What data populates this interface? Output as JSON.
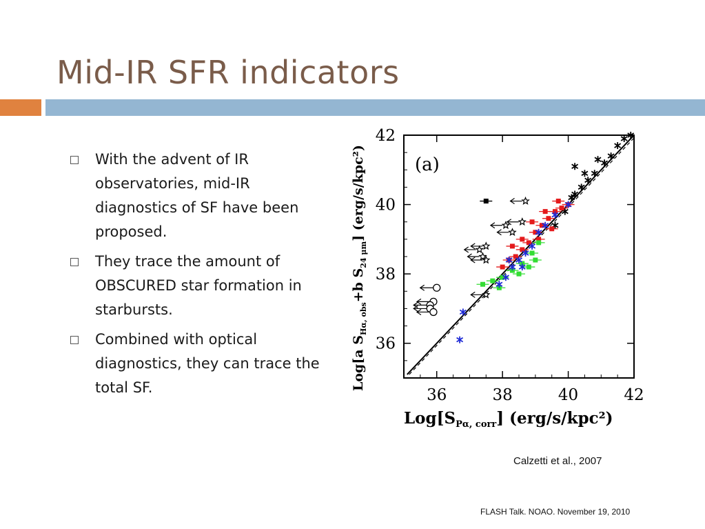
{
  "slide": {
    "title": "Mid-IR SFR indicators",
    "bullets": [
      "With the advent of IR observatories, mid-IR diagnostics of SF have been proposed.",
      "They trace the amount of OBSCURED star formation in starbursts.",
      "Combined with optical diagnostics, they can trace the total SF."
    ],
    "citation": "Calzetti et al., 2007",
    "footer": "FLASH Talk. NOAO. November 19, 2010"
  },
  "colors": {
    "title": "#7a5c4a",
    "accent_orange": "#e0823f",
    "accent_blue": "#94b6d2"
  },
  "chart_data": {
    "type": "scatter",
    "panel_label": "(a)",
    "xlabel_main": "Log[S",
    "xlabel_sub": "Pα, corr",
    "xlabel_tail": "] (erg/s/kpc²)",
    "ylabel_main": "Log[a S",
    "ylabel_sub1": "Hα, obs",
    "ylabel_mid": "+b S",
    "ylabel_sub2": "24 μm",
    "ylabel_tail": "] (erg/s/kpc²)",
    "xlim": [
      35,
      42
    ],
    "ylim": [
      35,
      42
    ],
    "xticks": [
      "36",
      "38",
      "40",
      "42"
    ],
    "yticks": [
      "36",
      "38",
      "40",
      "42"
    ],
    "fit_line": [
      [
        35.1,
        35.1
      ],
      [
        42,
        42.0
      ]
    ],
    "series": [
      {
        "marker": "asterisk",
        "color": "#000000",
        "points": [
          [
            39.6,
            39.4
          ],
          [
            39.9,
            39.8
          ],
          [
            40.2,
            40.3
          ],
          [
            40.4,
            40.5
          ],
          [
            40.6,
            40.7
          ],
          [
            40.8,
            40.9
          ],
          [
            41.1,
            41.2
          ],
          [
            41.3,
            41.4
          ],
          [
            41.5,
            41.7
          ],
          [
            41.7,
            41.9
          ],
          [
            41.9,
            42.0
          ],
          [
            40.9,
            41.3
          ],
          [
            40.5,
            40.9
          ],
          [
            40.1,
            40.2
          ],
          [
            40.2,
            41.1
          ]
        ]
      },
      {
        "marker": "square",
        "color": "#e41a1c",
        "points": [
          [
            38.4,
            38.5
          ],
          [
            38.6,
            38.7
          ],
          [
            38.8,
            38.9
          ],
          [
            39.0,
            39.2
          ],
          [
            39.2,
            39.4
          ],
          [
            39.4,
            39.6
          ],
          [
            39.6,
            39.8
          ],
          [
            39.8,
            39.9
          ],
          [
            40.0,
            40.0
          ],
          [
            38.2,
            38.4
          ],
          [
            38.0,
            38.2
          ],
          [
            38.6,
            39.0
          ],
          [
            39.1,
            39.0
          ],
          [
            39.5,
            39.3
          ],
          [
            39.7,
            40.1
          ],
          [
            38.3,
            38.8
          ],
          [
            38.9,
            39.5
          ],
          [
            39.3,
            39.8
          ]
        ]
      },
      {
        "marker": "square",
        "color": "#33dd33",
        "points": [
          [
            37.4,
            37.7
          ],
          [
            37.7,
            37.8
          ],
          [
            38.0,
            37.9
          ],
          [
            38.3,
            38.1
          ],
          [
            38.6,
            38.3
          ],
          [
            38.9,
            38.6
          ],
          [
            39.1,
            38.9
          ],
          [
            37.9,
            37.6
          ],
          [
            38.5,
            38.0
          ],
          [
            38.8,
            38.2
          ],
          [
            39.0,
            38.4
          ]
        ]
      },
      {
        "marker": "asterisk",
        "color": "#1f2bd6",
        "points": [
          [
            36.8,
            36.9
          ],
          [
            36.7,
            36.1
          ],
          [
            37.9,
            37.7
          ],
          [
            38.1,
            37.9
          ],
          [
            38.3,
            38.2
          ],
          [
            38.5,
            38.4
          ],
          [
            38.7,
            38.6
          ],
          [
            38.9,
            38.8
          ],
          [
            39.1,
            39.2
          ],
          [
            39.3,
            39.4
          ],
          [
            39.6,
            39.7
          ],
          [
            40.0,
            40.0
          ],
          [
            38.2,
            38.4
          ],
          [
            38.6,
            38.2
          ]
        ]
      },
      {
        "marker": "star",
        "color": "#000000",
        "points": [
          [
            37.5,
            37.4
          ],
          [
            37.5,
            38.4
          ],
          [
            37.3,
            38.7
          ],
          [
            37.4,
            38.5
          ],
          [
            37.5,
            38.8
          ],
          [
            38.1,
            39.4
          ],
          [
            38.7,
            40.1
          ],
          [
            38.3,
            39.2
          ],
          [
            38.6,
            39.5
          ]
        ]
      },
      {
        "marker": "circle",
        "color": "#000000",
        "points": [
          [
            36.0,
            37.6
          ],
          [
            35.9,
            37.2
          ],
          [
            35.8,
            37.1
          ],
          [
            35.8,
            37.0
          ],
          [
            35.9,
            36.9
          ]
        ]
      },
      {
        "marker": "square",
        "color": "#000000",
        "points": [
          [
            37.5,
            40.1
          ]
        ]
      }
    ]
  }
}
